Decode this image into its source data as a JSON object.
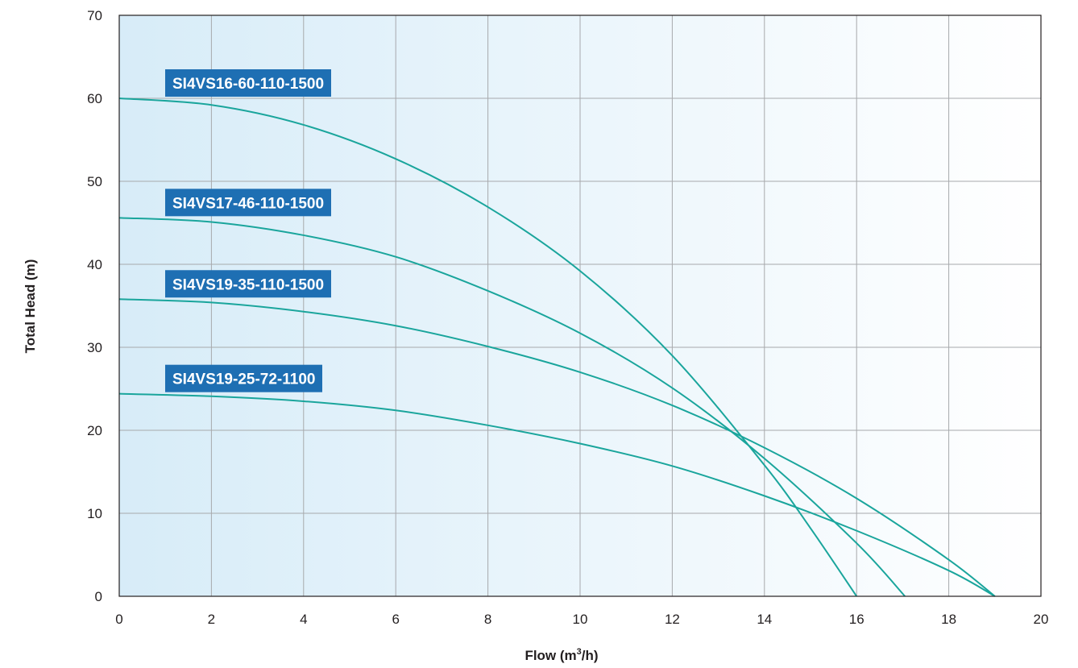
{
  "chart_data": {
    "type": "line",
    "xlabel": "Flow (m³/h)",
    "xlabel_parts": {
      "prefix": "Flow (m",
      "sup": "3",
      "suffix": "/h)"
    },
    "ylabel": "Total Head (m)",
    "xlim": [
      0,
      20
    ],
    "ylim": [
      0,
      70
    ],
    "x_ticks": [
      0,
      2,
      4,
      6,
      8,
      10,
      12,
      14,
      16,
      18,
      20
    ],
    "y_ticks": [
      0,
      10,
      20,
      30,
      40,
      50,
      60,
      70
    ],
    "grid": true,
    "series": [
      {
        "name": "SI4VS16-60-110-1500",
        "x": [
          0,
          2,
          4,
          6,
          8,
          10,
          12,
          14,
          15,
          16
        ],
        "y": [
          60,
          59.2,
          56.8,
          52.7,
          46.9,
          39.2,
          29.0,
          15.8,
          8.2,
          0
        ]
      },
      {
        "name": "SI4VS17-46-110-1500",
        "x": [
          0,
          2,
          4,
          6,
          8,
          10,
          12,
          14,
          16,
          17.05
        ],
        "y": [
          45.6,
          45.1,
          43.5,
          40.9,
          36.8,
          31.7,
          25.1,
          16.6,
          6.4,
          0
        ]
      },
      {
        "name": "SI4VS19-35-110-1500",
        "x": [
          0,
          2,
          4,
          6,
          8,
          10,
          12,
          14,
          16,
          18,
          19
        ],
        "y": [
          35.8,
          35.4,
          34.3,
          32.6,
          30.1,
          27.0,
          23.0,
          17.9,
          11.8,
          4.4,
          0
        ]
      },
      {
        "name": "SI4VS19-25-72-1100",
        "x": [
          0,
          2,
          4,
          6,
          8,
          10,
          12,
          14,
          16,
          18,
          19
        ],
        "y": [
          24.4,
          24.1,
          23.5,
          22.4,
          20.6,
          18.4,
          15.7,
          12.1,
          7.9,
          3.1,
          0
        ]
      }
    ]
  },
  "colors": {
    "curve": "#1aa59c",
    "label_bg": "#1e6fb3",
    "label_text": "#ffffff",
    "grid": "#a7a9ac",
    "axis": "#231f20",
    "plot_bg_left": "#d7ecf8",
    "plot_bg_right": "#ffffff"
  }
}
